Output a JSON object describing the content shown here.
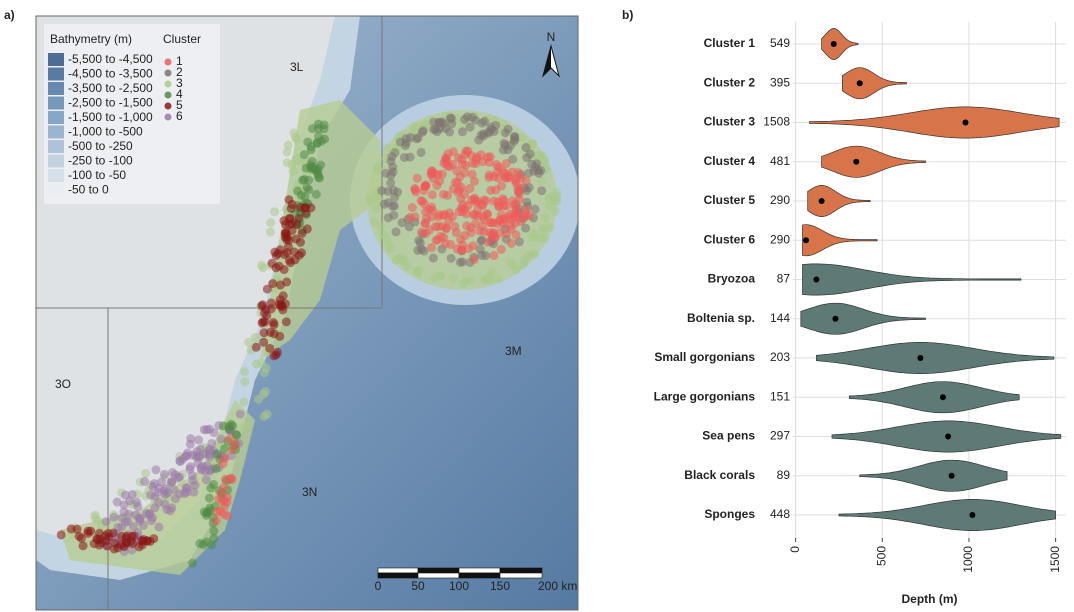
{
  "map": {
    "label": "a)",
    "legend": {
      "bathymetry_title": "Bathymetry (m)",
      "bathymetry": [
        {
          "label": "-5,500 to -4,500",
          "color": "#4d6d96"
        },
        {
          "label": "-4,500 to -3,500",
          "color": "#587ba4"
        },
        {
          "label": "-3,500 to -2,500",
          "color": "#6789b0"
        },
        {
          "label": "-2,500 to -1,500",
          "color": "#7698bb"
        },
        {
          "label": "-1,500 to -1,000",
          "color": "#87a7c6"
        },
        {
          "label": "-1,000 to -500",
          "color": "#99b5cf"
        },
        {
          "label": "-500 to -250",
          "color": "#adc3d7"
        },
        {
          "label": "-250 to -100",
          "color": "#c2d2df"
        },
        {
          "label": "-100 to -50",
          "color": "#d6e0e8"
        },
        {
          "label": "-50 to 0",
          "color": "#eaeef2"
        }
      ],
      "cluster_title": "Cluster",
      "clusters": [
        {
          "label": "1",
          "color": "#f05a5a"
        },
        {
          "label": "2",
          "color": "#7d7272"
        },
        {
          "label": "3",
          "color": "#a9c98a"
        },
        {
          "label": "4",
          "color": "#4e8a46"
        },
        {
          "label": "5",
          "color": "#8b1616"
        },
        {
          "label": "6",
          "color": "#9a7aa8"
        }
      ]
    },
    "regions": [
      "3L",
      "3M",
      "3N",
      "3O"
    ],
    "north": "N",
    "scale": [
      "0",
      "50",
      "100",
      "150",
      "200 km"
    ]
  },
  "chart_data": {
    "type": "violin",
    "label": "b)",
    "categories": [
      "Cluster 1",
      "Cluster 2",
      "Cluster 3",
      "Cluster 4",
      "Cluster 5",
      "Cluster 6",
      "Bryozoa",
      "Boltenia sp.",
      "Small gorgonians",
      "Large gorgonians",
      "Sea pens",
      "Black corals",
      "Sponges"
    ],
    "counts": [
      549,
      395,
      1508,
      481,
      290,
      290,
      87,
      144,
      203,
      151,
      297,
      89,
      448
    ],
    "colors": [
      "#d8744a",
      "#d8744a",
      "#d8744a",
      "#d8744a",
      "#d8744a",
      "#d8744a",
      "#5e7a77",
      "#5e7a77",
      "#5e7a77",
      "#5e7a77",
      "#5e7a77",
      "#5e7a77",
      "#5e7a77"
    ],
    "min": [
      150,
      270,
      80,
      150,
      70,
      40,
      40,
      30,
      120,
      310,
      210,
      370,
      250
    ],
    "median": [
      220,
      370,
      980,
      350,
      150,
      60,
      120,
      230,
      720,
      850,
      880,
      900,
      1020
    ],
    "max": [
      360,
      640,
      1520,
      750,
      430,
      470,
      1300,
      750,
      1490,
      1290,
      1530,
      1220,
      1500
    ],
    "xlabel": "Depth (m)",
    "xlim": [
      -15,
      1560
    ],
    "xticks": [
      0,
      500,
      1000,
      1500
    ],
    "grid": true
  }
}
